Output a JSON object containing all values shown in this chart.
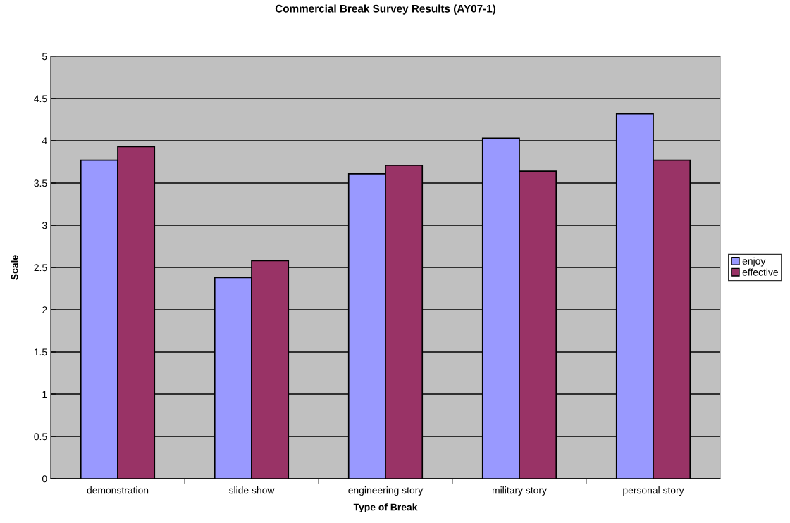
{
  "chart_data": {
    "type": "bar",
    "title": "Commercial Break Survey Results (AY07-1)",
    "xlabel": "Type of Break",
    "ylabel": "Scale",
    "categories": [
      "demonstration",
      "slide show",
      "engineering story",
      "military story",
      "personal story"
    ],
    "series": [
      {
        "name": "enjoy",
        "color": "#9999ff",
        "values": [
          3.77,
          2.38,
          3.61,
          4.03,
          4.32
        ]
      },
      {
        "name": "effective",
        "color": "#993366",
        "values": [
          3.93,
          2.58,
          3.71,
          3.64,
          3.77
        ]
      }
    ],
    "ylim": [
      0,
      5
    ],
    "yticks": [
      0,
      0.5,
      1,
      1.5,
      2,
      2.5,
      3,
      3.5,
      4,
      4.5,
      5
    ],
    "grid": "y",
    "legend": "right"
  }
}
